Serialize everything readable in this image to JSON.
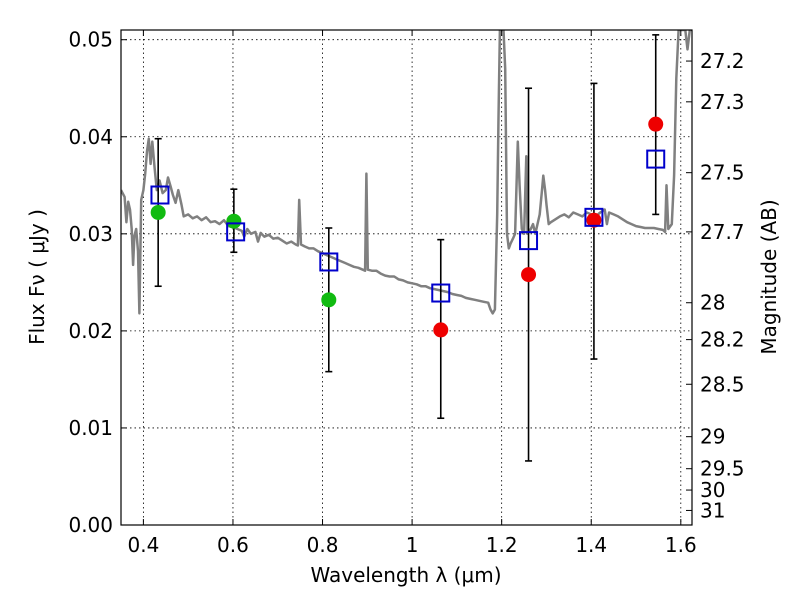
{
  "chart_data": {
    "type": "scatter",
    "xlabel": "Wavelength  λ (μm)",
    "ylabel_left": "Flux  Fν  ( μJy )",
    "ylabel_right": "Magnitude (AB)",
    "xlim": [
      0.35,
      1.625
    ],
    "ylim": [
      0.0,
      0.051
    ],
    "grid": true,
    "x_ticks": [
      0.4,
      0.6,
      0.8,
      1.0,
      1.2,
      1.4,
      1.6
    ],
    "x_tick_labels": [
      "0.4",
      "0.6",
      "0.8",
      "1",
      "1.2",
      "1.4",
      "1.6"
    ],
    "y_ticks": [
      0.0,
      0.01,
      0.02,
      0.03,
      0.04,
      0.05
    ],
    "y_tick_labels": [
      "0.00",
      "0.01",
      "0.02",
      "0.03",
      "0.04",
      "0.05"
    ],
    "right_ticks": [
      {
        "label": "27.2",
        "flux": 0.0478
      },
      {
        "label": "27.3",
        "flux": 0.0436
      },
      {
        "label": "27.5",
        "flux": 0.0363
      },
      {
        "label": "27.7",
        "flux": 0.0302
      },
      {
        "label": "28",
        "flux": 0.0229
      },
      {
        "label": "28.2",
        "flux": 0.0191
      },
      {
        "label": "28.5",
        "flux": 0.0145
      },
      {
        "label": "29",
        "flux": 0.0091
      },
      {
        "label": "29.5",
        "flux": 0.0058
      },
      {
        "label": "30",
        "flux": 0.0036
      },
      {
        "label": "31",
        "flux": 0.0015
      }
    ],
    "series": [
      {
        "marker": "open-square",
        "color": "#0000cc",
        "points": [
          {
            "x": 0.437,
            "y": 0.034
          },
          {
            "x": 0.606,
            "y": 0.0302
          },
          {
            "x": 0.814,
            "y": 0.0271
          },
          {
            "x": 1.064,
            "y": 0.0239
          },
          {
            "x": 1.26,
            "y": 0.0293
          },
          {
            "x": 1.406,
            "y": 0.0317
          },
          {
            "x": 1.544,
            "y": 0.0377
          }
        ]
      },
      {
        "marker": "circle",
        "color": "#11bb11",
        "points": [
          {
            "x": 0.433,
            "y": 0.0322
          },
          {
            "x": 0.602,
            "y": 0.0313
          },
          {
            "x": 0.814,
            "y": 0.0232
          }
        ]
      },
      {
        "marker": "circle",
        "color": "#ee0000",
        "points": [
          {
            "x": 1.064,
            "y": 0.0201
          },
          {
            "x": 1.26,
            "y": 0.0258
          },
          {
            "x": 1.406,
            "y": 0.0314
          },
          {
            "x": 1.544,
            "y": 0.0413
          }
        ]
      }
    ],
    "error_bars": [
      {
        "x": 0.433,
        "low": 0.0246,
        "high": 0.0398
      },
      {
        "x": 0.602,
        "low": 0.0281,
        "high": 0.0346
      },
      {
        "x": 0.814,
        "low": 0.0158,
        "high": 0.0306
      },
      {
        "x": 1.064,
        "low": 0.011,
        "high": 0.0294
      },
      {
        "x": 1.26,
        "low": 0.0066,
        "high": 0.045
      },
      {
        "x": 1.406,
        "low": 0.0171,
        "high": 0.0455
      },
      {
        "x": 1.544,
        "low": 0.032,
        "high": 0.0505
      }
    ],
    "model_spectrum": {
      "color": "#808080",
      "points": [
        [
          0.35,
          0.0345
        ],
        [
          0.358,
          0.0338
        ],
        [
          0.362,
          0.0312
        ],
        [
          0.366,
          0.0333
        ],
        [
          0.37,
          0.0325
        ],
        [
          0.374,
          0.0305
        ],
        [
          0.377,
          0.0268
        ],
        [
          0.38,
          0.0298
        ],
        [
          0.384,
          0.0305
        ],
        [
          0.388,
          0.0282
        ],
        [
          0.391,
          0.0218
        ],
        [
          0.395,
          0.0335
        ],
        [
          0.4,
          0.0345
        ],
        [
          0.404,
          0.0362
        ],
        [
          0.408,
          0.0385
        ],
        [
          0.412,
          0.0398
        ],
        [
          0.416,
          0.0372
        ],
        [
          0.42,
          0.0395
        ],
        [
          0.425,
          0.0368
        ],
        [
          0.43,
          0.0345
        ],
        [
          0.436,
          0.0355
        ],
        [
          0.443,
          0.0342
        ],
        [
          0.45,
          0.0345
        ],
        [
          0.455,
          0.0358
        ],
        [
          0.46,
          0.035
        ],
        [
          0.466,
          0.034
        ],
        [
          0.472,
          0.0332
        ],
        [
          0.478,
          0.0345
        ],
        [
          0.485,
          0.033
        ],
        [
          0.49,
          0.0318
        ],
        [
          0.5,
          0.032
        ],
        [
          0.51,
          0.0316
        ],
        [
          0.52,
          0.0318
        ],
        [
          0.53,
          0.0314
        ],
        [
          0.54,
          0.0317
        ],
        [
          0.55,
          0.0312
        ],
        [
          0.56,
          0.0313
        ],
        [
          0.57,
          0.031
        ],
        [
          0.58,
          0.0314
        ],
        [
          0.59,
          0.0308
        ],
        [
          0.6,
          0.0307
        ],
        [
          0.61,
          0.0305
        ],
        [
          0.62,
          0.0303
        ],
        [
          0.625,
          0.0297
        ],
        [
          0.632,
          0.0305
        ],
        [
          0.64,
          0.03
        ],
        [
          0.65,
          0.0302
        ],
        [
          0.656,
          0.0292
        ],
        [
          0.662,
          0.0301
        ],
        [
          0.67,
          0.0297
        ],
        [
          0.68,
          0.0299
        ],
        [
          0.69,
          0.0295
        ],
        [
          0.7,
          0.0296
        ],
        [
          0.71,
          0.0293
        ],
        [
          0.72,
          0.029
        ],
        [
          0.73,
          0.0292
        ],
        [
          0.74,
          0.0289
        ],
        [
          0.745,
          0.0288
        ],
        [
          0.748,
          0.0335
        ],
        [
          0.752,
          0.0289
        ],
        [
          0.76,
          0.0287
        ],
        [
          0.77,
          0.0285
        ],
        [
          0.78,
          0.0285
        ],
        [
          0.79,
          0.0282
        ],
        [
          0.8,
          0.028
        ],
        [
          0.81,
          0.0278
        ],
        [
          0.82,
          0.0276
        ],
        [
          0.83,
          0.0274
        ],
        [
          0.84,
          0.0272
        ],
        [
          0.85,
          0.027
        ],
        [
          0.86,
          0.0268
        ],
        [
          0.87,
          0.0266
        ],
        [
          0.88,
          0.0265
        ],
        [
          0.89,
          0.0263
        ],
        [
          0.895,
          0.0262
        ],
        [
          0.898,
          0.0362
        ],
        [
          0.901,
          0.0263
        ],
        [
          0.91,
          0.0262
        ],
        [
          0.92,
          0.0262
        ],
        [
          0.93,
          0.0259
        ],
        [
          0.94,
          0.0257
        ],
        [
          0.95,
          0.0256
        ],
        [
          0.96,
          0.0256
        ],
        [
          0.97,
          0.0253
        ],
        [
          0.98,
          0.0252
        ],
        [
          0.99,
          0.025
        ],
        [
          1.0,
          0.0249
        ],
        [
          1.01,
          0.0248
        ],
        [
          1.02,
          0.0246
        ],
        [
          1.03,
          0.0246
        ],
        [
          1.04,
          0.0244
        ],
        [
          1.05,
          0.0243
        ],
        [
          1.06,
          0.0242
        ],
        [
          1.07,
          0.0241
        ],
        [
          1.08,
          0.024
        ],
        [
          1.09,
          0.0238
        ],
        [
          1.1,
          0.0237
        ],
        [
          1.11,
          0.0236
        ],
        [
          1.12,
          0.0234
        ],
        [
          1.13,
          0.0233
        ],
        [
          1.14,
          0.0232
        ],
        [
          1.15,
          0.0231
        ],
        [
          1.16,
          0.023
        ],
        [
          1.17,
          0.0229
        ],
        [
          1.175,
          0.0222
        ],
        [
          1.18,
          0.0218
        ],
        [
          1.185,
          0.0222
        ],
        [
          1.19,
          0.032
        ],
        [
          1.193,
          0.042
        ],
        [
          1.196,
          0.051
        ],
        [
          1.204,
          0.051
        ],
        [
          1.208,
          0.047
        ],
        [
          1.212,
          0.03
        ],
        [
          1.216,
          0.0285
        ],
        [
          1.22,
          0.029
        ],
        [
          1.225,
          0.0295
        ],
        [
          1.23,
          0.03
        ],
        [
          1.236,
          0.0395
        ],
        [
          1.24,
          0.035
        ],
        [
          1.245,
          0.0305
        ],
        [
          1.25,
          0.03
        ],
        [
          1.255,
          0.038
        ],
        [
          1.258,
          0.03
        ],
        [
          1.265,
          0.0305
        ],
        [
          1.27,
          0.031
        ],
        [
          1.275,
          0.03
        ],
        [
          1.28,
          0.031
        ],
        [
          1.285,
          0.032
        ],
        [
          1.29,
          0.0345
        ],
        [
          1.293,
          0.036
        ],
        [
          1.297,
          0.0345
        ],
        [
          1.3,
          0.033
        ],
        [
          1.305,
          0.031
        ],
        [
          1.31,
          0.0312
        ],
        [
          1.32,
          0.0315
        ],
        [
          1.33,
          0.0318
        ],
        [
          1.34,
          0.032
        ],
        [
          1.35,
          0.0317
        ],
        [
          1.36,
          0.0322
        ],
        [
          1.37,
          0.032
        ],
        [
          1.38,
          0.0318
        ],
        [
          1.39,
          0.0322
        ],
        [
          1.4,
          0.032
        ],
        [
          1.41,
          0.0318
        ],
        [
          1.42,
          0.0322
        ],
        [
          1.43,
          0.0325
        ],
        [
          1.435,
          0.031
        ],
        [
          1.44,
          0.0322
        ],
        [
          1.45,
          0.032
        ],
        [
          1.46,
          0.0318
        ],
        [
          1.47,
          0.0315
        ],
        [
          1.48,
          0.0312
        ],
        [
          1.49,
          0.031
        ],
        [
          1.5,
          0.0308
        ],
        [
          1.51,
          0.0307
        ],
        [
          1.52,
          0.0306
        ],
        [
          1.53,
          0.0306
        ],
        [
          1.54,
          0.0306
        ],
        [
          1.55,
          0.0305
        ],
        [
          1.56,
          0.0304
        ],
        [
          1.565,
          0.0302
        ],
        [
          1.568,
          0.035
        ],
        [
          1.572,
          0.0305
        ],
        [
          1.58,
          0.031
        ],
        [
          1.585,
          0.036
        ],
        [
          1.59,
          0.046
        ],
        [
          1.595,
          0.051
        ],
        [
          1.61,
          0.051
        ],
        [
          1.615,
          0.049
        ],
        [
          1.62,
          0.051
        ],
        [
          1.625,
          0.051
        ]
      ]
    }
  }
}
